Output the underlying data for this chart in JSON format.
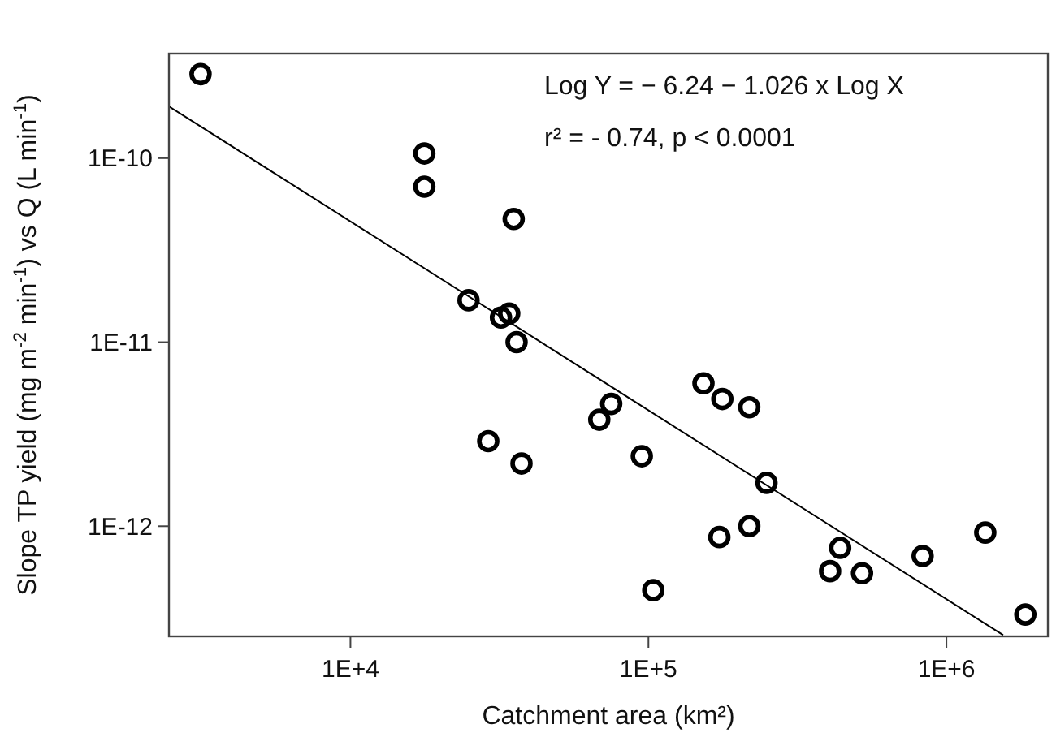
{
  "chart_data": {
    "type": "scatter",
    "xlabel": "Catchment area (km²)",
    "ylabel": "Slope TP yield (mg m$^{-2}$ min$^{-1}$) vs Q (L min$^{-1}$)",
    "annotations": [
      "Log Y  = − 6.24  − 1.026 x Log X",
      "r² = - 0.74, p < 0.0001"
    ],
    "log": "xy",
    "grid": false,
    "xlim": [
      2460,
      2190000
    ],
    "ylim": [
      2.52e-13,
      3.7e-10
    ],
    "xticks": [
      {
        "value": 10000,
        "label": "1E+4"
      },
      {
        "value": 100000,
        "label": "1E+5"
      },
      {
        "value": 1000000,
        "label": "1E+6"
      }
    ],
    "yticks": [
      {
        "value": 1e-12,
        "label": "1E-12"
      },
      {
        "value": 1e-11,
        "label": "1E-11"
      },
      {
        "value": 1e-10,
        "label": "1E-10"
      }
    ],
    "series": [
      {
        "color": "#000000",
        "marker": "circle",
        "x": [
          3140,
          17700,
          17700,
          35300,
          24900,
          32000,
          34100,
          36100,
          29000,
          37500,
          75000,
          68400,
          95000,
          103800,
          153000,
          177000,
          218000,
          249000,
          173000,
          218000,
          440000,
          407000,
          521000,
          832000,
          1350000,
          1840000
        ],
        "values": [
          2.86e-10,
          1.06e-10,
          7e-11,
          4.67e-11,
          1.69e-11,
          1.36e-11,
          1.43e-11,
          1e-11,
          2.9e-12,
          2.19e-12,
          4.62e-12,
          3.79e-12,
          2.4e-12,
          4.49e-13,
          5.98e-12,
          4.91e-12,
          4.43e-12,
          1.72e-12,
          8.73e-13,
          1e-12,
          7.62e-13,
          5.7e-13,
          5.55e-13,
          6.89e-13,
          9.23e-13,
          3.31e-13
        ]
      },
      {
        "type": "line",
        "color": "#000000",
        "marker": "none",
        "line_style": "solid",
        "x": [
          2460,
          1550000
        ],
        "values": [
          1.91e-10,
          2.56e-13
        ]
      }
    ]
  }
}
